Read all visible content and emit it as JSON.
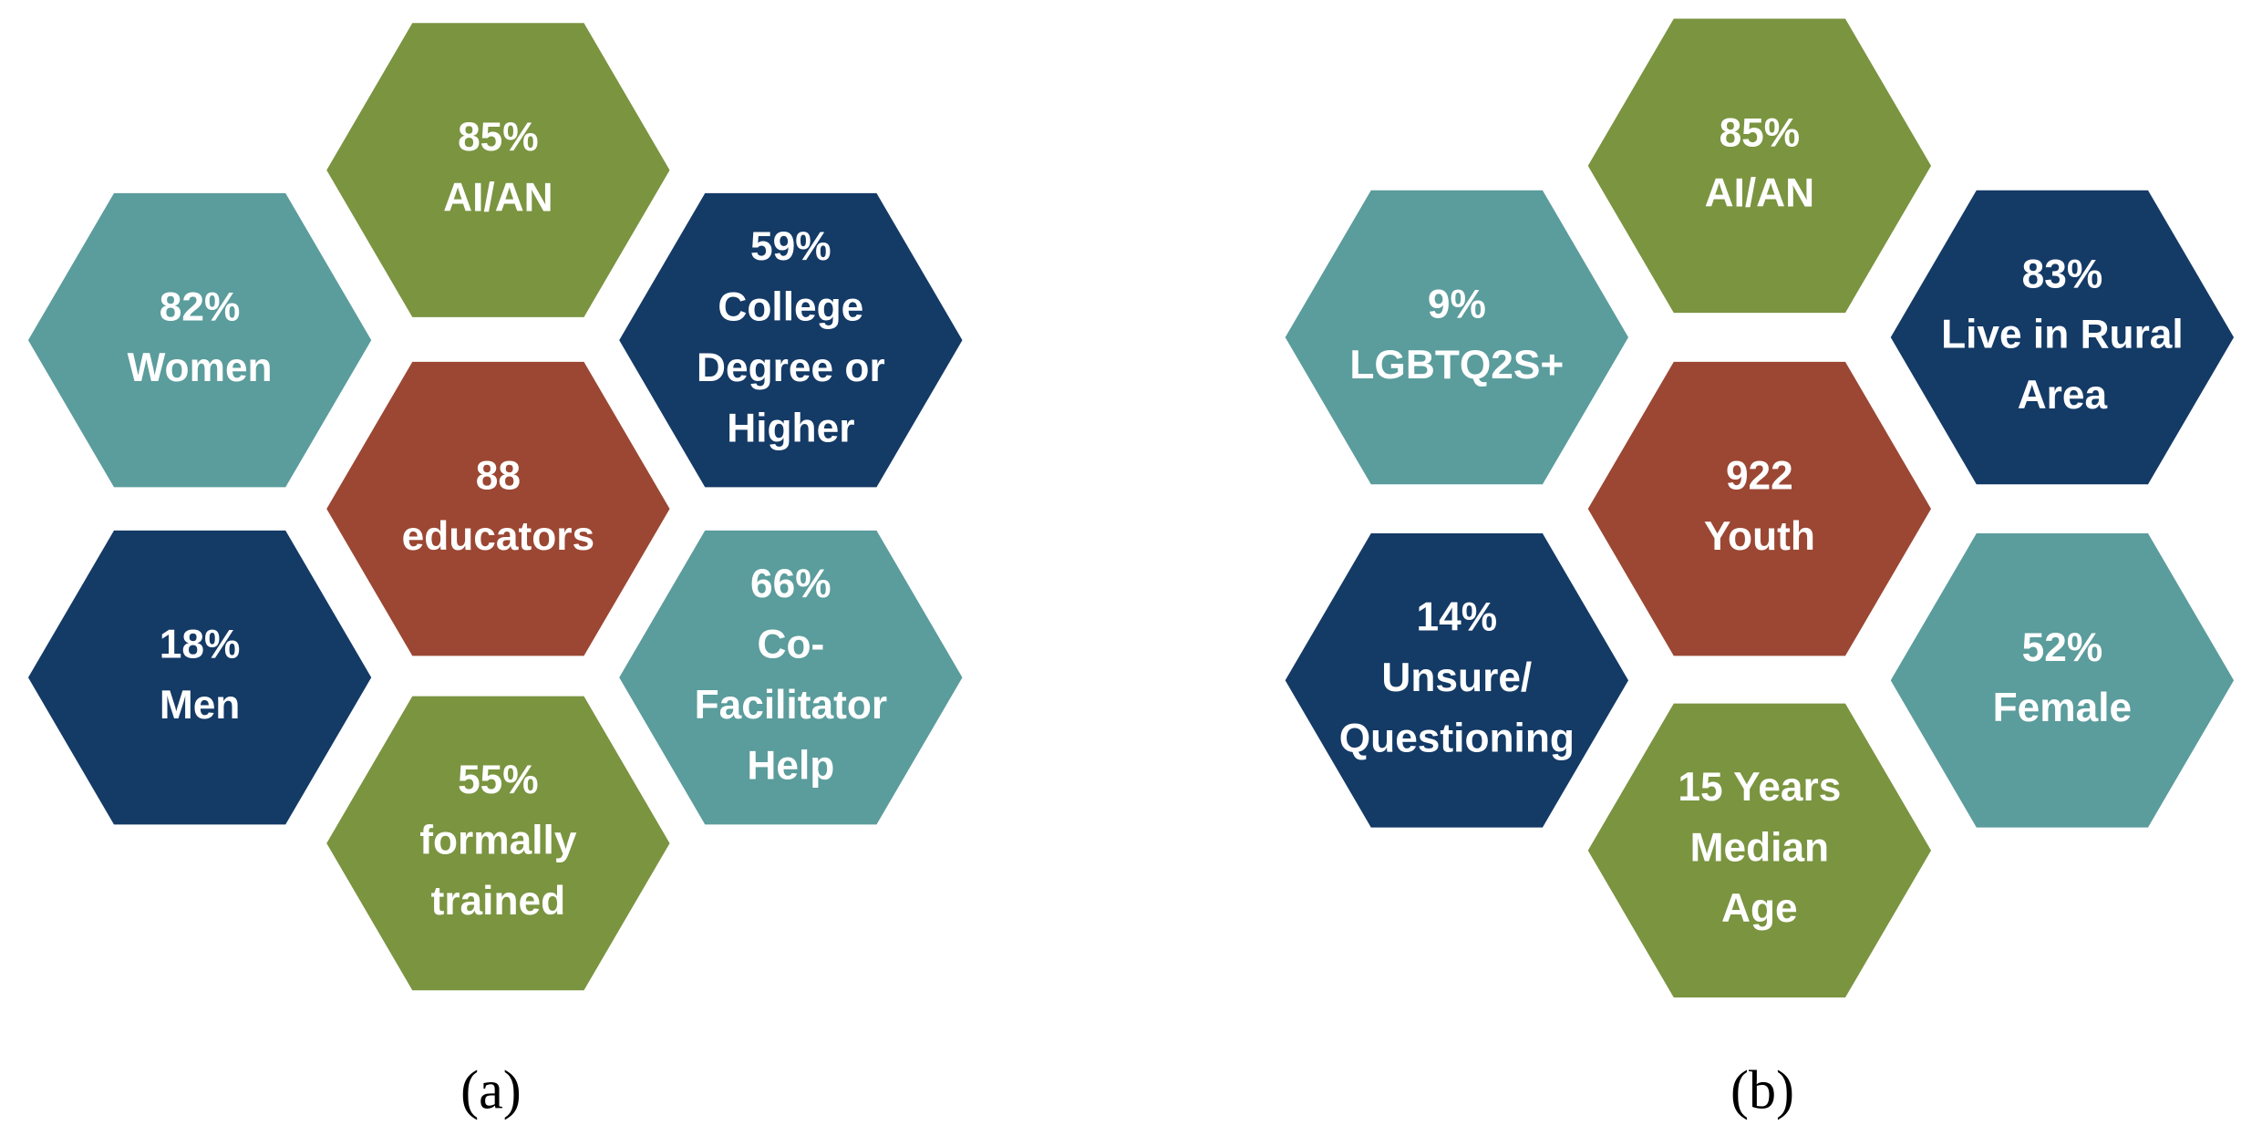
{
  "panels": [
    {
      "label": "(a)",
      "hexagons": [
        {
          "lines": [
            "85%",
            "AI/AN"
          ],
          "color": "#7a9440"
        },
        {
          "lines": [
            "82%",
            "Women"
          ],
          "color": "#5b9c9c"
        },
        {
          "lines": [
            "59%",
            "College",
            "Degree or",
            "Higher"
          ],
          "color": "#143a66"
        },
        {
          "lines": [
            "88",
            "educators"
          ],
          "color": "#9b4733"
        },
        {
          "lines": [
            "18%",
            "Men"
          ],
          "color": "#143a66"
        },
        {
          "lines": [
            "66%",
            "Co-",
            "Facilitator",
            "Help"
          ],
          "color": "#5b9c9c"
        },
        {
          "lines": [
            "55%",
            "formally",
            "trained"
          ],
          "color": "#7a9440"
        }
      ]
    },
    {
      "label": "(b)",
      "hexagons": [
        {
          "lines": [
            "85%",
            "AI/AN"
          ],
          "color": "#7a9440"
        },
        {
          "lines": [
            "9%",
            "LGBTQ2S+"
          ],
          "color": "#5b9c9c"
        },
        {
          "lines": [
            "83%",
            "Live in Rural",
            "Area"
          ],
          "color": "#143a66"
        },
        {
          "lines": [
            "922",
            "Youth"
          ],
          "color": "#9b4733"
        },
        {
          "lines": [
            "14%",
            "Unsure/",
            "Questioning"
          ],
          "color": "#143a66"
        },
        {
          "lines": [
            "52%",
            "Female"
          ],
          "color": "#5b9c9c"
        },
        {
          "lines": [
            "15 Years",
            "Median",
            "Age"
          ],
          "color": "#7a9440"
        }
      ]
    }
  ]
}
